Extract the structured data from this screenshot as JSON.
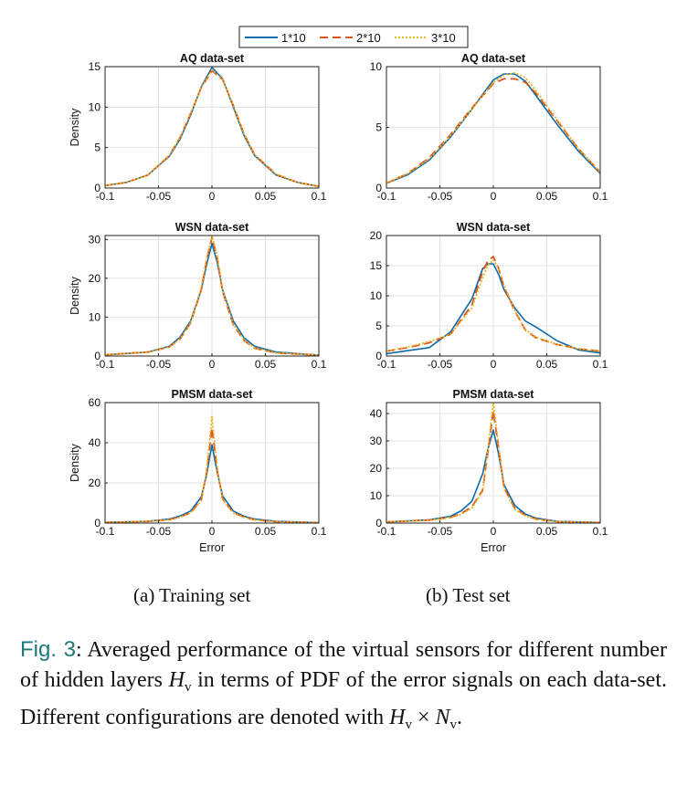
{
  "legend": {
    "colors": [
      "#0b6bab",
      "#d9531e",
      "#edb120"
    ],
    "dashes": [
      "",
      "9,5",
      "2,2"
    ]
  },
  "chart_data": [
    {
      "type": "line",
      "title": "AQ data-set",
      "xlabel": "",
      "ylabel": "Density",
      "xlim": [
        -0.1,
        0.1
      ],
      "ylim": [
        0,
        15
      ],
      "xticks": [
        -0.1,
        -0.05,
        0,
        0.05,
        0.1
      ],
      "xtick_labels": [
        "-0.1",
        "-0.05",
        "0",
        "0.05",
        "0.1"
      ],
      "yticks": [
        0,
        5,
        10,
        15
      ],
      "ytick_labels": [
        "0",
        "5",
        "10",
        "15"
      ],
      "grid": true,
      "x": [
        -0.1,
        -0.08,
        -0.06,
        -0.04,
        -0.03,
        -0.02,
        -0.01,
        0,
        0.01,
        0.02,
        0.03,
        0.04,
        0.06,
        0.08,
        0.1
      ],
      "series": [
        {
          "name": "1*10",
          "values": [
            0.3,
            0.7,
            1.6,
            3.9,
            6.0,
            9.0,
            12.5,
            14.9,
            13.5,
            10.0,
            6.5,
            4.0,
            1.6,
            0.7,
            0.2
          ]
        },
        {
          "name": "2*10",
          "values": [
            0.3,
            0.7,
            1.6,
            4.0,
            6.2,
            9.2,
            12.4,
            14.5,
            13.4,
            10.2,
            6.7,
            4.1,
            1.7,
            0.7,
            0.2
          ]
        },
        {
          "name": "3*10",
          "values": [
            0.3,
            0.7,
            1.6,
            4.0,
            6.2,
            9.2,
            12.4,
            14.6,
            13.4,
            10.2,
            6.7,
            4.1,
            1.7,
            0.7,
            0.2
          ]
        }
      ]
    },
    {
      "type": "line",
      "title": "AQ data-set",
      "xlabel": "",
      "ylabel": "",
      "xlim": [
        -0.1,
        0.1
      ],
      "ylim": [
        0,
        10
      ],
      "xticks": [
        -0.1,
        -0.05,
        0,
        0.05,
        0.1
      ],
      "xtick_labels": [
        "-0.1",
        "-0.05",
        "0",
        "0.05",
        "0.1"
      ],
      "yticks": [
        0,
        5,
        10
      ],
      "ytick_labels": [
        "0",
        "5",
        "10"
      ],
      "grid": true,
      "x": [
        -0.1,
        -0.08,
        -0.06,
        -0.04,
        -0.02,
        0,
        0.01,
        0.02,
        0.03,
        0.04,
        0.06,
        0.08,
        0.1
      ],
      "series": [
        {
          "name": "1*10",
          "values": [
            0.4,
            1.1,
            2.3,
            4.2,
            6.5,
            8.9,
            9.4,
            9.4,
            8.8,
            7.6,
            5.2,
            3.0,
            1.2
          ]
        },
        {
          "name": "2*10",
          "values": [
            0.4,
            1.2,
            2.5,
            4.4,
            6.6,
            8.6,
            9.0,
            9.0,
            8.7,
            7.8,
            5.5,
            3.2,
            1.3
          ]
        },
        {
          "name": "3*10",
          "values": [
            0.4,
            1.2,
            2.4,
            4.3,
            6.5,
            8.7,
            9.3,
            9.5,
            9.1,
            8.0,
            5.6,
            3.2,
            1.3
          ]
        }
      ]
    },
    {
      "type": "line",
      "title": "WSN data-set",
      "xlabel": "",
      "ylabel": "Density",
      "xlim": [
        -0.1,
        0.1
      ],
      "ylim": [
        0,
        31
      ],
      "xticks": [
        -0.1,
        -0.05,
        0,
        0.05,
        0.1
      ],
      "xtick_labels": [
        "-0.1",
        "-0.05",
        "0",
        "0.05",
        "0.1"
      ],
      "yticks": [
        0,
        10,
        20,
        30
      ],
      "ytick_labels": [
        "0",
        "10",
        "20",
        "30"
      ],
      "grid": true,
      "x": [
        -0.1,
        -0.06,
        -0.04,
        -0.03,
        -0.02,
        -0.01,
        -0.005,
        0,
        0.005,
        0.01,
        0.02,
        0.03,
        0.04,
        0.06,
        0.1
      ],
      "series": [
        {
          "name": "1*10",
          "values": [
            0.3,
            1.0,
            2.5,
            4.8,
            9.0,
            17.0,
            23.5,
            29.0,
            24.0,
            17.0,
            9.0,
            4.7,
            2.5,
            1.0,
            0.2
          ]
        },
        {
          "name": "2*10",
          "values": [
            0.3,
            1.0,
            2.3,
            4.3,
            8.5,
            17.0,
            24.5,
            30.5,
            25.0,
            16.5,
            8.0,
            4.0,
            2.0,
            0.8,
            0.2
          ]
        },
        {
          "name": "3*10",
          "values": [
            0.3,
            1.0,
            2.3,
            4.3,
            8.5,
            17.5,
            25.0,
            31.0,
            25.5,
            16.8,
            8.2,
            4.1,
            2.1,
            0.8,
            0.2
          ]
        }
      ]
    },
    {
      "type": "line",
      "title": "WSN data-set",
      "xlabel": "",
      "ylabel": "",
      "xlim": [
        -0.1,
        0.1
      ],
      "ylim": [
        0,
        20
      ],
      "xticks": [
        -0.1,
        -0.05,
        0,
        0.05,
        0.1
      ],
      "xtick_labels": [
        "-0.1",
        "-0.05",
        "0",
        "0.05",
        "0.1"
      ],
      "yticks": [
        0,
        5,
        10,
        15,
        20
      ],
      "ytick_labels": [
        "0",
        "5",
        "10",
        "15",
        "20"
      ],
      "grid": true,
      "x": [
        -0.1,
        -0.08,
        -0.06,
        -0.04,
        -0.02,
        -0.01,
        -0.005,
        0,
        0.005,
        0.01,
        0.02,
        0.03,
        0.04,
        0.06,
        0.08,
        0.1
      ],
      "series": [
        {
          "name": "1*10",
          "values": [
            0.4,
            0.9,
            1.4,
            4.0,
            9.5,
            14.5,
            15.3,
            15.3,
            13.5,
            11.0,
            8.0,
            5.8,
            4.8,
            2.5,
            1.0,
            0.5
          ]
        },
        {
          "name": "2*10",
          "values": [
            0.8,
            1.4,
            2.2,
            3.6,
            8.5,
            14.0,
            15.8,
            16.5,
            14.5,
            11.5,
            7.5,
            4.3,
            3.0,
            1.9,
            1.2,
            0.8
          ]
        },
        {
          "name": "3*10",
          "values": [
            0.8,
            1.5,
            2.4,
            3.6,
            8.0,
            13.0,
            15.0,
            16.0,
            14.5,
            11.8,
            7.6,
            4.4,
            3.1,
            1.9,
            1.2,
            0.8
          ]
        }
      ]
    },
    {
      "type": "line",
      "title": "PMSM data-set",
      "xlabel": "Error",
      "ylabel": "Density",
      "xlim": [
        -0.1,
        0.1
      ],
      "ylim": [
        0,
        60
      ],
      "xticks": [
        -0.1,
        -0.05,
        0,
        0.05,
        0.1
      ],
      "xtick_labels": [
        "-0.1",
        "-0.05",
        "0",
        "0.05",
        "0.1"
      ],
      "yticks": [
        0,
        20,
        40,
        60
      ],
      "ytick_labels": [
        "0",
        "20",
        "40",
        "60"
      ],
      "grid": true,
      "x": [
        -0.1,
        -0.06,
        -0.04,
        -0.03,
        -0.02,
        -0.01,
        -0.005,
        0,
        0.005,
        0.01,
        0.02,
        0.03,
        0.04,
        0.06,
        0.1
      ],
      "series": [
        {
          "name": "1*10",
          "values": [
            0.3,
            0.9,
            2.0,
            3.5,
            6.0,
            13.0,
            24.0,
            39.0,
            25.0,
            13.5,
            6.0,
            3.4,
            2.0,
            0.9,
            0.2
          ]
        },
        {
          "name": "2*10",
          "values": [
            0.3,
            0.8,
            1.7,
            3.0,
            5.2,
            11.5,
            25.0,
            47.5,
            26.0,
            12.0,
            5.2,
            3.0,
            1.7,
            0.7,
            0.2
          ]
        },
        {
          "name": "3*10",
          "values": [
            0.3,
            0.8,
            1.6,
            2.8,
            5.0,
            11.0,
            26.0,
            53.0,
            27.0,
            11.5,
            5.0,
            2.8,
            1.6,
            0.7,
            0.2
          ]
        }
      ]
    },
    {
      "type": "line",
      "title": "PMSM data-set",
      "xlabel": "Error",
      "ylabel": "",
      "xlim": [
        -0.1,
        0.1
      ],
      "ylim": [
        0,
        44
      ],
      "xticks": [
        -0.1,
        -0.05,
        0,
        0.05,
        0.1
      ],
      "xtick_labels": [
        "-0.1",
        "-0.05",
        "0",
        "0.05",
        "0.1"
      ],
      "yticks": [
        0,
        10,
        20,
        30,
        40
      ],
      "ytick_labels": [
        "0",
        "10",
        "20",
        "30",
        "40"
      ],
      "grid": true,
      "x": [
        -0.1,
        -0.06,
        -0.04,
        -0.03,
        -0.02,
        -0.01,
        -0.005,
        0,
        0.005,
        0.01,
        0.02,
        0.03,
        0.04,
        0.06,
        0.1
      ],
      "series": [
        {
          "name": "1*10",
          "values": [
            0.4,
            1.2,
            2.5,
            4.5,
            8.0,
            18.0,
            27.0,
            34.0,
            25.0,
            14.0,
            6.5,
            3.3,
            1.8,
            0.6,
            0.2
          ]
        },
        {
          "name": "2*10",
          "values": [
            0.4,
            1.1,
            2.1,
            3.5,
            6.0,
            12.0,
            26.0,
            41.0,
            27.0,
            13.0,
            5.5,
            2.8,
            1.5,
            0.5,
            0.2
          ]
        },
        {
          "name": "3*10",
          "values": [
            0.4,
            1.0,
            2.0,
            3.2,
            5.5,
            11.5,
            27.0,
            44.0,
            28.0,
            12.5,
            5.0,
            2.7,
            1.4,
            0.5,
            0.2
          ]
        }
      ]
    }
  ],
  "panel_labels": {
    "a": "(a) Training set",
    "b": "(b) Test set"
  },
  "caption": {
    "label": "Fig. 3",
    "text_1": ": Averaged performance of the virtual sensors for different number of hidden layers ",
    "hv": "H",
    "sub_v": "v",
    "text_2": " in terms of PDF of the error signals on each data-set. Different configurations are denoted with ",
    "times": " × ",
    "nv": "N",
    "sub_v2": "v",
    "end": "."
  }
}
